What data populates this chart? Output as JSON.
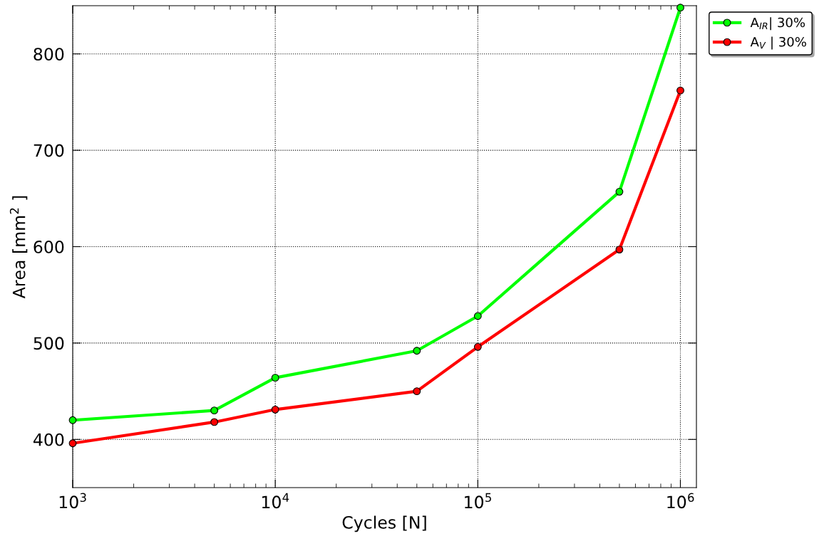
{
  "chart_data": {
    "type": "line",
    "xlabel": "Cycles [N]",
    "ylabel": "Area [mm$^{2}$ ]",
    "x": [
      1000,
      5000,
      10000,
      50000,
      100000,
      500000,
      1000000
    ],
    "series": [
      {
        "name": "A$_{IR}$| 30%",
        "color": "#00ff00",
        "values": [
          420,
          430,
          464,
          492,
          528,
          657,
          848
        ]
      },
      {
        "name": "A$_{V}$ | 30%",
        "color": "#ff0000",
        "values": [
          396,
          418,
          431,
          450,
          496,
          597,
          762
        ]
      }
    ],
    "log": "x",
    "xlim": [
      1000,
      1200000
    ],
    "xticks": [
      {
        "value": 1000,
        "label": "10$^{3}$"
      },
      {
        "value": 10000,
        "label": "10$^{4}$"
      },
      {
        "value": 100000,
        "label": "10$^{5}$"
      },
      {
        "value": 1000000,
        "label": "10$^{6}$"
      }
    ],
    "ylim": [
      350,
      850
    ],
    "yticks": [
      400,
      500,
      600,
      700,
      800
    ],
    "grid": true,
    "legend": "top right",
    "marker": "circle",
    "line_style": "solid"
  }
}
